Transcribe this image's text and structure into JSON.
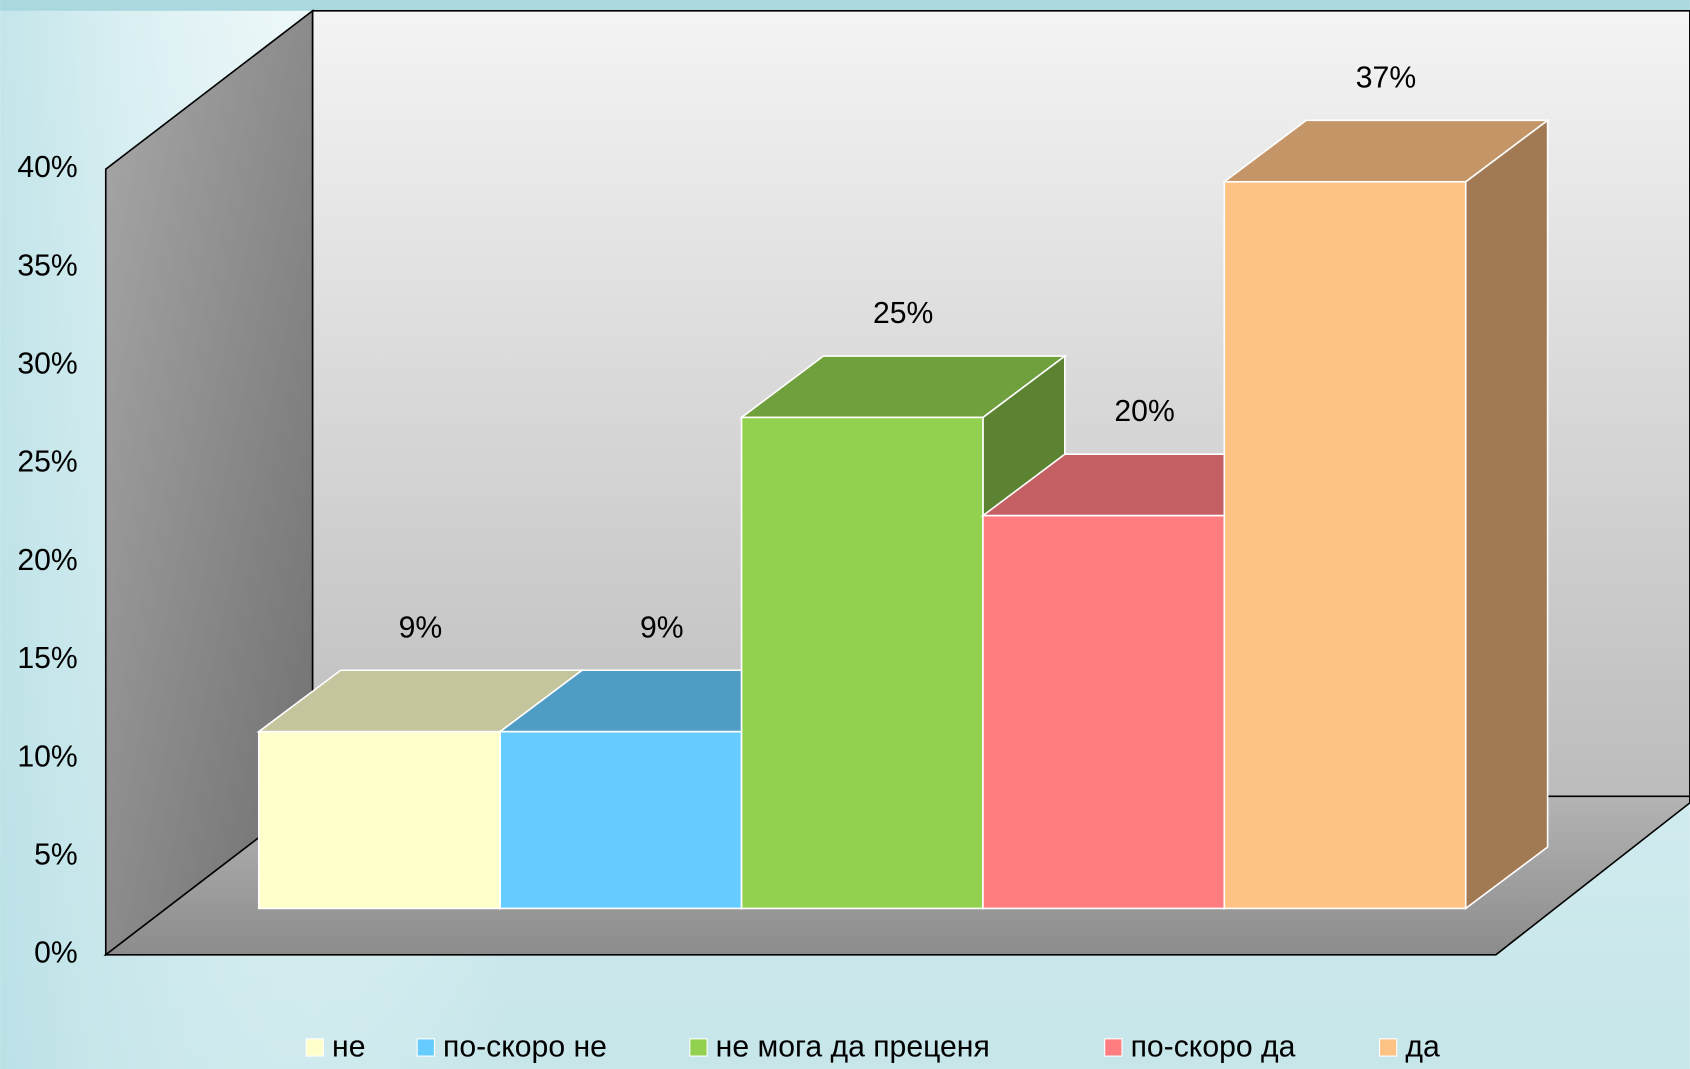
{
  "chart_data": {
    "type": "bar3d",
    "categories": [
      "не",
      "по-скоро не",
      "не мога да преценя",
      "по-скоро да",
      "да"
    ],
    "values": [
      9,
      9,
      25,
      20,
      37
    ],
    "value_labels": [
      "9%",
      "9%",
      "25%",
      "20%",
      "37%"
    ],
    "colors": [
      "#FFFFCC",
      "#66CCFF",
      "#92D050",
      "#FF7C80",
      "#FFC285"
    ],
    "ylim": [
      0,
      40
    ],
    "yticks": [
      {
        "value": 0,
        "label": "0%"
      },
      {
        "value": 5,
        "label": "5%"
      },
      {
        "value": 10,
        "label": "10%"
      },
      {
        "value": 15,
        "label": "15%"
      },
      {
        "value": 20,
        "label": "20%"
      },
      {
        "value": 25,
        "label": "25%"
      },
      {
        "value": 30,
        "label": "30%"
      },
      {
        "value": 35,
        "label": "35%"
      },
      {
        "value": 40,
        "label": "40%"
      }
    ],
    "legend": "bottom"
  }
}
